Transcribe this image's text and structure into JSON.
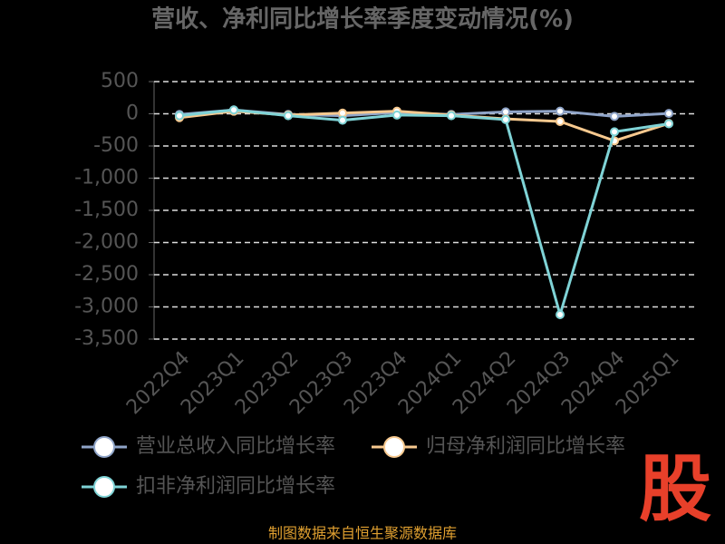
{
  "chart_data": {
    "type": "line",
    "title": "营收、净利同比增长率季度变动情况(%)",
    "categories": [
      "2022Q4",
      "2023Q1",
      "2023Q2",
      "2023Q3",
      "2023Q4",
      "2024Q1",
      "2024Q2",
      "2024Q3",
      "2024Q4",
      "2025Q1"
    ],
    "series": [
      {
        "name": "营业总收入同比增长率",
        "color": "#8fa4c8",
        "values": [
          -10,
          60,
          -10,
          -30,
          20,
          -10,
          30,
          40,
          -40,
          5
        ]
      },
      {
        "name": "归母净利润同比增长率",
        "color": "#f7c98f",
        "values": [
          -60,
          40,
          -20,
          10,
          40,
          -20,
          -80,
          -120,
          -420,
          -150
        ]
      },
      {
        "name": "扣非净利润同比增长率",
        "color": "#7fd3d6",
        "values": [
          -30,
          60,
          -30,
          -100,
          -20,
          -30,
          -90,
          -3120,
          -280,
          -155
        ]
      }
    ],
    "ylim": [
      -3500,
      500
    ],
    "yticks": [
      500,
      0,
      {
        "value": -500,
        "label": "-500"
      },
      {
        "value": -1000,
        "label": "-1,000"
      },
      {
        "value": -1500,
        "label": "-1,500"
      },
      {
        "value": -2000,
        "label": "-2,000"
      },
      {
        "value": -2500,
        "label": "-2,500"
      },
      {
        "value": -3000,
        "label": "-3,000"
      },
      {
        "value": -3500,
        "label": "-3,500"
      }
    ],
    "grid": true,
    "source": "制图数据来自恒生聚源数据库",
    "logo": "股"
  }
}
